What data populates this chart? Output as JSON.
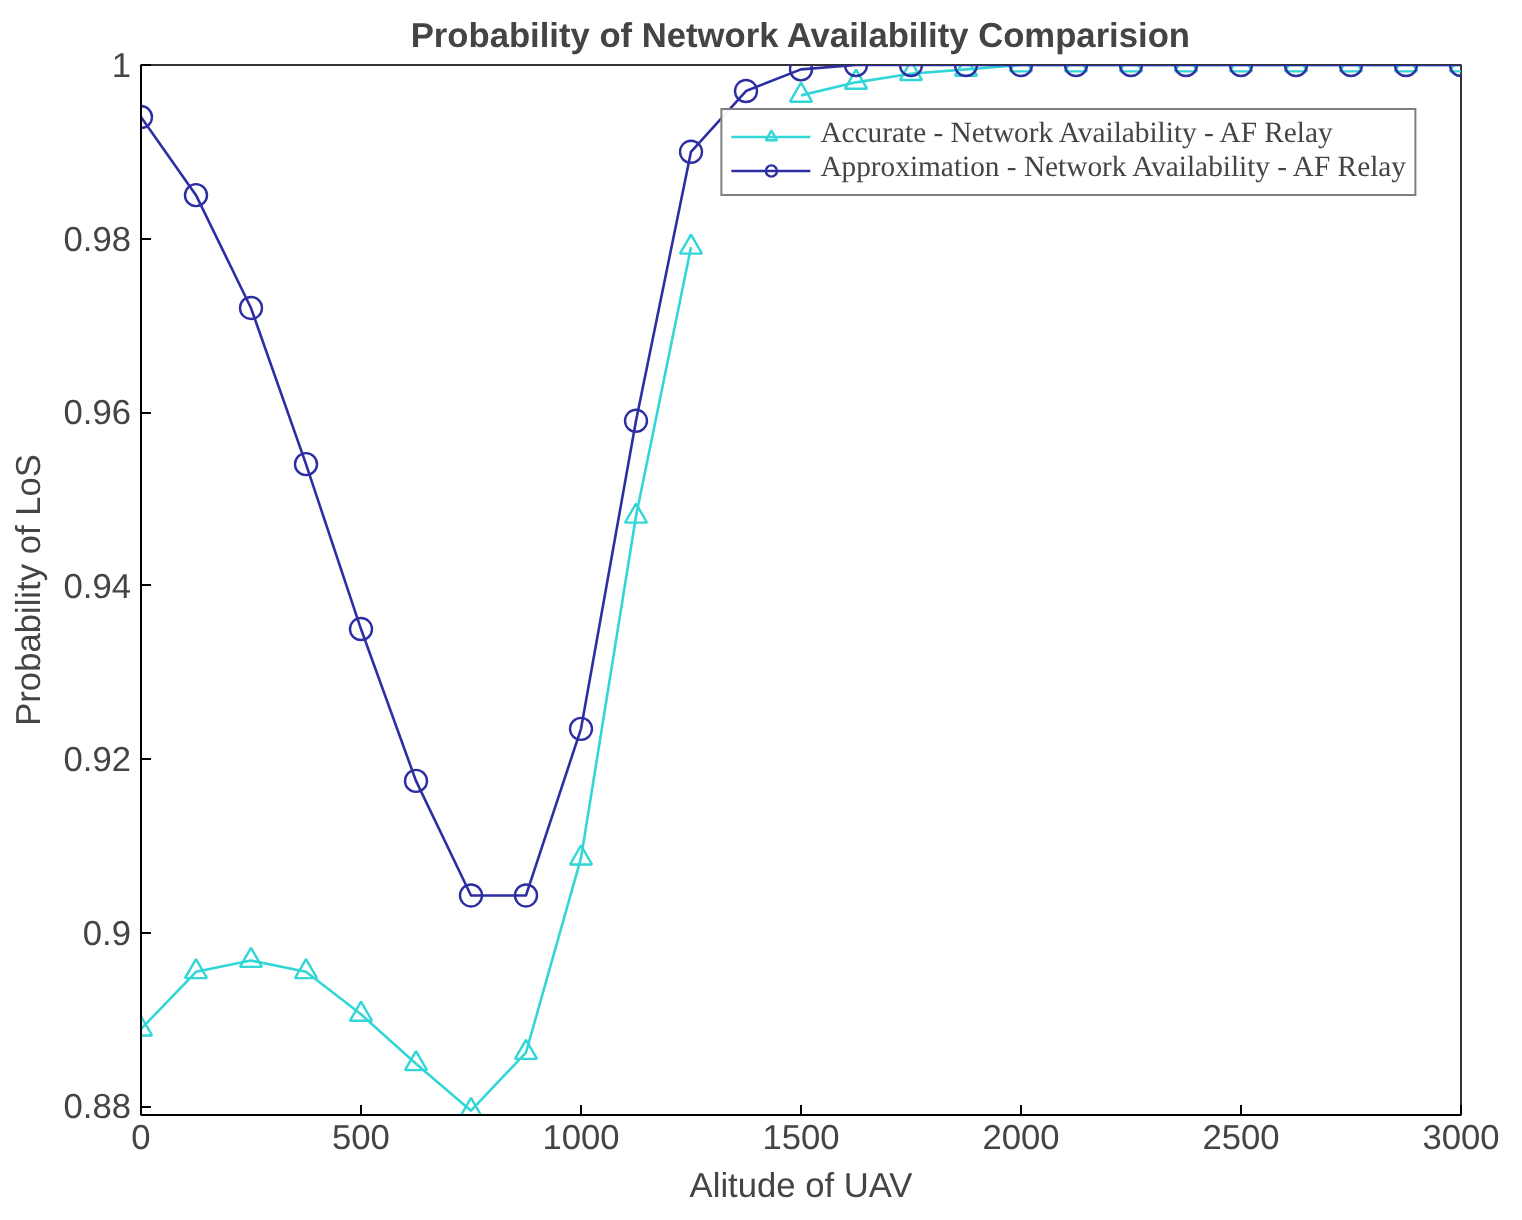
{
  "chart_data": {
    "type": "line",
    "title": "Probability of Network Availability Comparision",
    "xlabel": "Alitude of UAV",
    "ylabel": "Probability of LoS",
    "x": [
      0,
      125,
      250,
      375,
      500,
      625,
      750,
      875,
      1000,
      1125,
      1250,
      1375,
      1500,
      1625,
      1750,
      1875,
      2000,
      2125,
      2250,
      2375,
      2500,
      2625,
      2750,
      2875,
      3000
    ],
    "series": [
      {
        "name": "Accurate - Network Availability - AF Relay",
        "color": "#33d6d6",
        "marker": "triangle",
        "values": [
          0.8889,
          0.8955,
          0.8968,
          0.8955,
          0.8906,
          0.8849,
          0.8795,
          0.8862,
          0.9086,
          0.948,
          0.979,
          null,
          0.9965,
          0.998,
          0.999,
          0.9995,
          1,
          1,
          1,
          1,
          1,
          1,
          1,
          1,
          1
        ]
      },
      {
        "name": "Approximation - Network Availability - AF Relay",
        "color": "#2e2ea3",
        "marker": "circle",
        "values": [
          0.994,
          0.985,
          0.972,
          0.954,
          0.935,
          0.9175,
          0.9043,
          0.9043,
          0.9235,
          0.959,
          0.99,
          0.997,
          0.9995,
          1,
          1,
          1,
          1,
          1,
          1,
          1,
          1,
          1,
          1,
          1,
          1
        ]
      }
    ],
    "xlim": [
      0,
      3000
    ],
    "ylim": [
      0.879,
      1
    ],
    "xticks": [
      0,
      500,
      1000,
      1500,
      2000,
      2500,
      3000
    ],
    "yticks": [
      0.88,
      0.9,
      0.92,
      0.94,
      0.96,
      0.98,
      1
    ],
    "legend": "top right",
    "grid": false,
    "line_style": "solid"
  }
}
